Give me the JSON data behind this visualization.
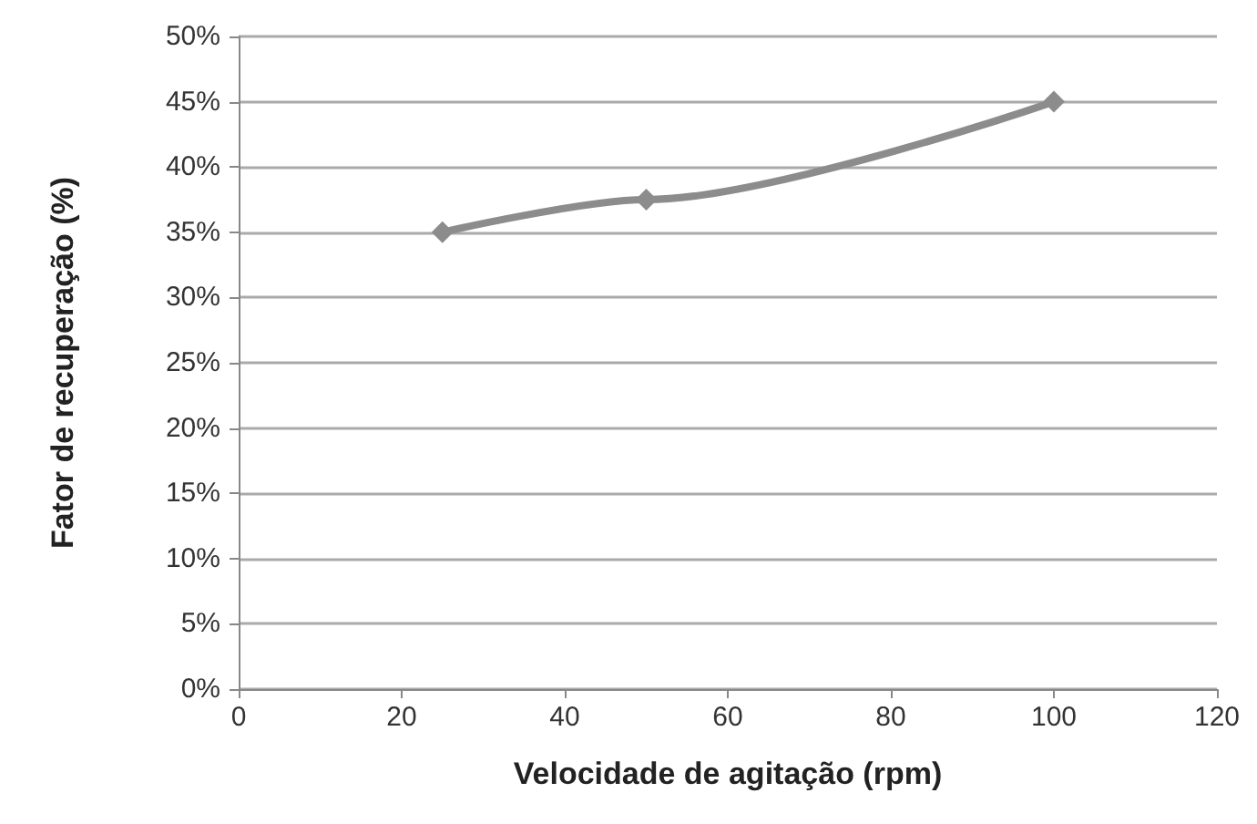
{
  "chart_data": {
    "type": "line",
    "xlabel": "Velocidade de agitação (rpm)",
    "ylabel": "Fator de recuperação (%)",
    "x": [
      25,
      50,
      100
    ],
    "series": [
      {
        "color": "#8c8c8c",
        "values": [
          35,
          37.5,
          45
        ]
      }
    ],
    "xlim": [
      0,
      120
    ],
    "xticks": [
      0,
      20,
      40,
      60,
      80,
      100,
      120
    ],
    "ylim": [
      0,
      50
    ],
    "yticks": [
      {
        "value": 0,
        "label": "0%"
      },
      {
        "value": 5,
        "label": "5%"
      },
      {
        "value": 10,
        "label": "10%"
      },
      {
        "value": 15,
        "label": "15%"
      },
      {
        "value": 20,
        "label": "20%"
      },
      {
        "value": 25,
        "label": "25%"
      },
      {
        "value": 30,
        "label": "30%"
      },
      {
        "value": 35,
        "label": "35%"
      },
      {
        "value": 40,
        "label": "40%"
      },
      {
        "value": 45,
        "label": "45%"
      },
      {
        "value": 50,
        "label": "50%"
      }
    ],
    "grid": "y",
    "marker": "diamond",
    "line_style": "solid"
  }
}
